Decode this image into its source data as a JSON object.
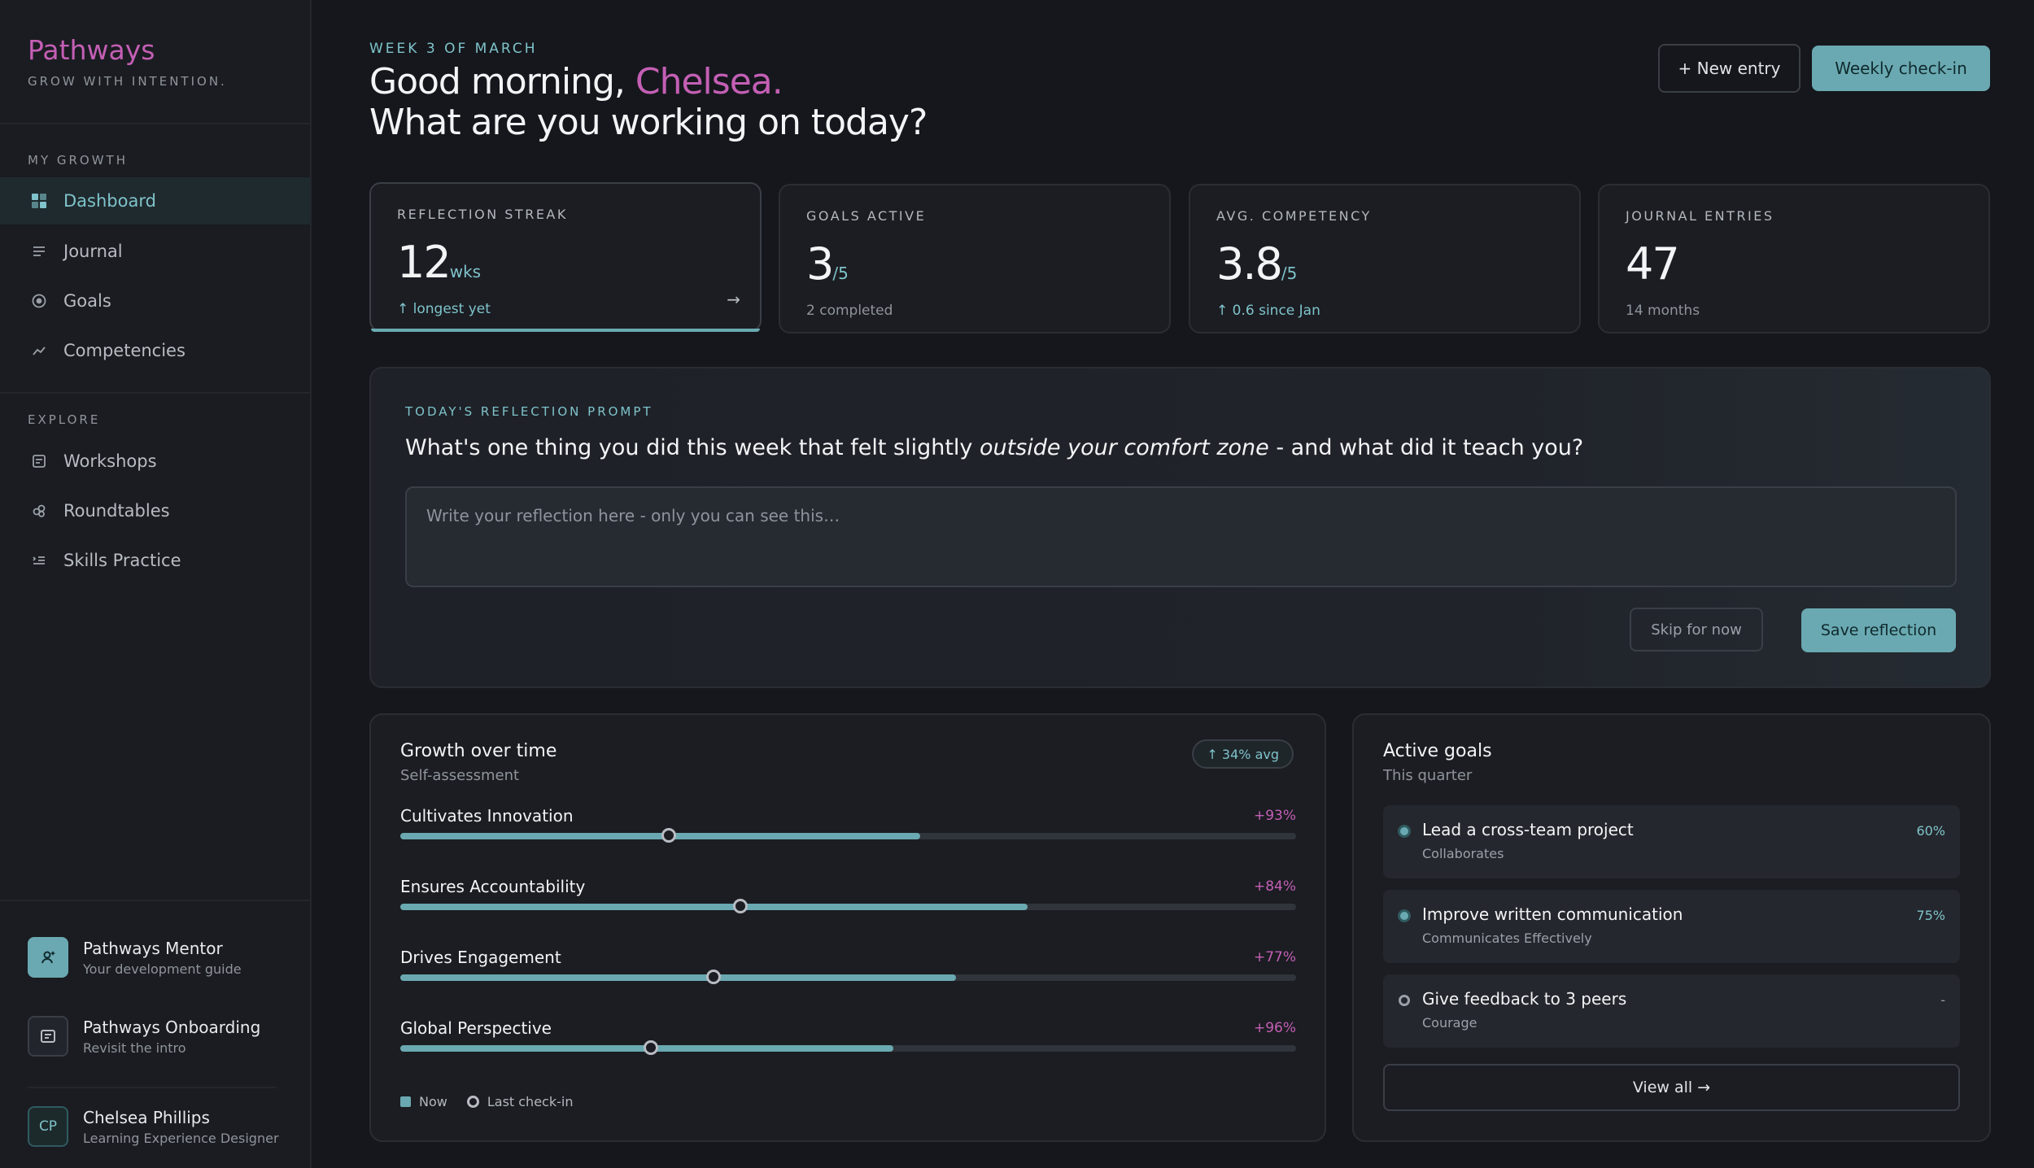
{
  "brand": {
    "name": "Pathways",
    "tagline": "GROW WITH INTENTION."
  },
  "sidebar": {
    "my_growth_label": "MY GROWTH",
    "explore_label": "EXPLORE",
    "my_growth": [
      {
        "label": "Dashboard",
        "icon": "grid-icon",
        "active": true
      },
      {
        "label": "Journal",
        "icon": "lines-icon"
      },
      {
        "label": "Goals",
        "icon": "target-icon"
      },
      {
        "label": "Competencies",
        "icon": "chart-icon"
      }
    ],
    "explore": [
      {
        "label": "Workshops",
        "icon": "doc-icon"
      },
      {
        "label": "Roundtables",
        "icon": "people-icon"
      },
      {
        "label": "Skills Practice",
        "icon": "list-icon"
      }
    ],
    "mentor": {
      "title": "Pathways Mentor",
      "sub": "Your development guide"
    },
    "onboarding": {
      "title": "Pathways Onboarding",
      "sub": "Revisit the intro"
    },
    "user": {
      "initials": "CP",
      "name": "Chelsea Phillips",
      "role": "Learning Experience Designer"
    }
  },
  "header": {
    "eyebrow": "WEEK 3 OF MARCH",
    "greeting_prefix": "Good morning, ",
    "name": "Chelsea.",
    "line2": "What are you working on today?",
    "new_entry": "+ New entry",
    "check_in": "Weekly check-in"
  },
  "stats": [
    {
      "label": "REFLECTION STREAK",
      "value": "12",
      "unit": "wks",
      "sub": "↑ longest yet",
      "arrow": "→"
    },
    {
      "label": "GOALS ACTIVE",
      "value": "3",
      "unit": "/5",
      "sub": "2 completed"
    },
    {
      "label": "AVG. COMPETENCY",
      "value": "3.8",
      "unit": "/5",
      "sub": "↑ 0.6 since Jan"
    },
    {
      "label": "JOURNAL ENTRIES",
      "value": "47",
      "unit": "",
      "sub": "14 months"
    }
  ],
  "prompt": {
    "label": "TODAY'S REFLECTION PROMPT",
    "q_before": "What's one thing you did this week that felt slightly ",
    "q_em": "outside your comfort zone",
    "q_after": " - and what did it teach you?",
    "placeholder": "Write your reflection here - only you can see this…",
    "skip": "Skip for now",
    "save": "Save reflection"
  },
  "growth": {
    "title": "Growth over time",
    "sub": "Self-assessment",
    "badge": "↑ 34% avg",
    "legend_now": "Now",
    "legend_last": "Last check-in",
    "items": [
      {
        "label": "Cultivates Innovation",
        "delta": "+93%",
        "now": 0.58,
        "last": 0.3
      },
      {
        "label": "Ensures Accountability",
        "delta": "+84%",
        "now": 0.7,
        "last": 0.38
      },
      {
        "label": "Drives Engagement",
        "delta": "+77%",
        "now": 0.62,
        "last": 0.35
      },
      {
        "label": "Global Perspective",
        "delta": "+96%",
        "now": 0.55,
        "last": 0.28
      }
    ]
  },
  "goals": {
    "title": "Active goals",
    "sub": "This quarter",
    "view_all": "View all →",
    "items": [
      {
        "title": "Lead a cross-team project",
        "sub": "Collaborates",
        "pct": "60%",
        "filled": true
      },
      {
        "title": "Improve written communication",
        "sub": "Communicates Effectively",
        "pct": "75%",
        "filled": true
      },
      {
        "title": "Give feedback to 3 peers",
        "sub": "Courage",
        "pct": "-",
        "filled": false
      }
    ]
  },
  "colors": {
    "accent": "#6aa9b1",
    "brand": "#c45fb5",
    "bg": "#15171c"
  }
}
